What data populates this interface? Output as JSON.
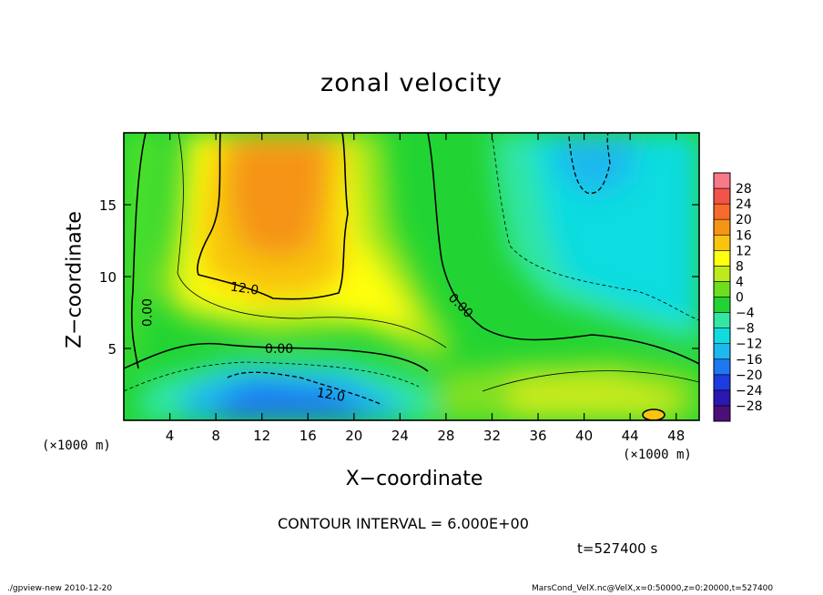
{
  "chart_data": {
    "type": "heatmap",
    "title": "zonal velocity",
    "xlabel": "X−coordinate",
    "ylabel": "Z−coordinate",
    "x_unit_left": "(×1000 m)",
    "x_unit_right": "(×1000 m)",
    "xlim": [
      0,
      50
    ],
    "ylim": [
      0,
      20
    ],
    "x_ticks": [
      4,
      8,
      12,
      16,
      20,
      24,
      28,
      32,
      36,
      40,
      44,
      48
    ],
    "y_ticks": [
      5,
      10,
      15
    ],
    "contour_interval_text": "CONTOUR INTERVAL = 6.000E+00",
    "contour_labels": [
      {
        "text": "12.0",
        "x": 10.5,
        "y": 9.2
      },
      {
        "text": "0.00",
        "x": 13.5,
        "y": 5.0
      },
      {
        "text": "12.0",
        "x": 18.0,
        "y": 1.8
      },
      {
        "text": "0.00",
        "x": 2.0,
        "y": 7.5
      },
      {
        "text": "0.00",
        "x": 29.3,
        "y": 8.0
      }
    ],
    "colorbar": {
      "levels": [
        -28,
        -24,
        -20,
        -16,
        -12,
        -8,
        -4,
        0,
        4,
        8,
        12,
        16,
        20,
        24,
        28
      ],
      "labels": [
        "28",
        "24",
        "20",
        "16",
        "12",
        "8",
        "4",
        "0",
        "−4",
        "−8",
        "−12",
        "−16",
        "−20",
        "−24",
        "−28"
      ],
      "colors": [
        "#4b0f7a",
        "#2a18b0",
        "#1c3be0",
        "#1f78f2",
        "#1fb8ee",
        "#10dce0",
        "#33e6a4",
        "#22d433",
        "#6edf1e",
        "#bcea1c",
        "#ffff10",
        "#f8c410",
        "#f59417",
        "#f86a2c",
        "#f25449",
        "#f7798a"
      ]
    },
    "regions": [
      {
        "name": "positive-upper-left",
        "peak": 18,
        "x_range": [
          6,
          20
        ],
        "z_range": [
          8,
          20
        ]
      },
      {
        "name": "negative-lower-left",
        "peak": -16,
        "x_range": [
          8,
          24
        ],
        "z_range": [
          0,
          4
        ]
      },
      {
        "name": "negative-upper-right",
        "peak": -10,
        "x_range": [
          34,
          50
        ],
        "z_range": [
          6,
          20
        ]
      },
      {
        "name": "positive-lower-right",
        "peak": 6,
        "x_range": [
          34,
          50
        ],
        "z_range": [
          0,
          4
        ]
      }
    ]
  },
  "timestamp": "t=527400 s",
  "footer_left": "./gpview-new  2010-12-20",
  "footer_right": "MarsCond_VelX.nc@VelX,x=0:50000,z=0:20000,t=527400"
}
